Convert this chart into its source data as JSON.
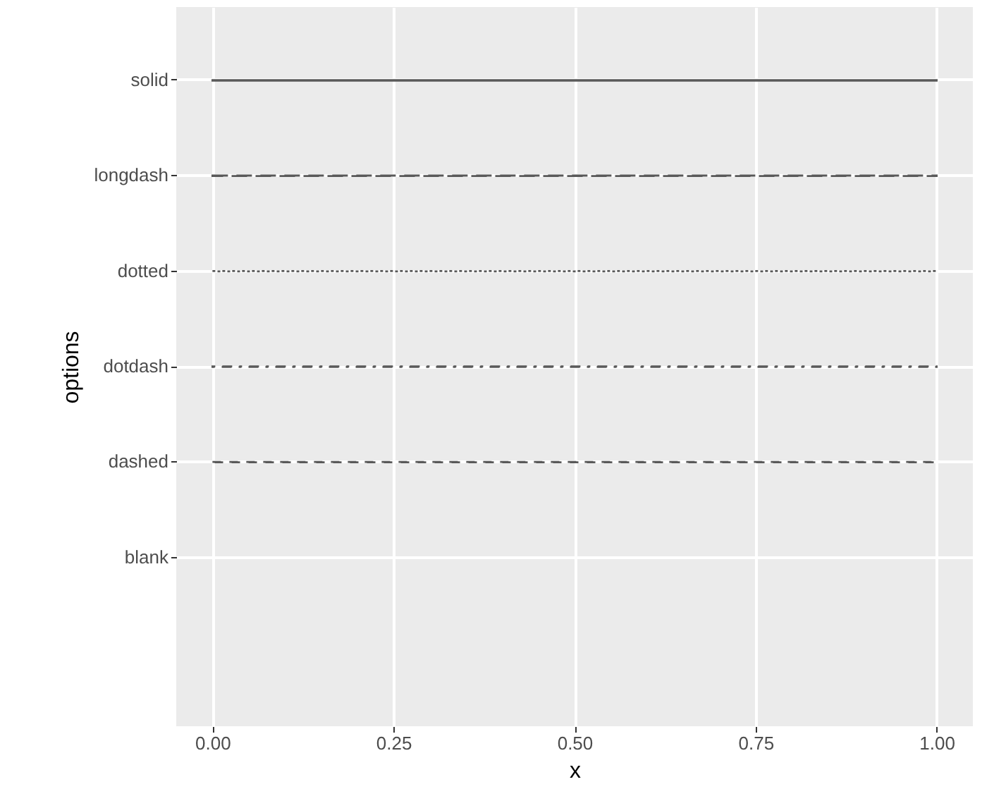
{
  "chart_data": {
    "type": "bar",
    "orientation": "horizontal",
    "xlabel": "x",
    "ylabel": "options",
    "categories": [
      "solid",
      "longdash",
      "dotted",
      "dotdash",
      "dashed",
      "blank"
    ],
    "xlim": [
      -0.05,
      1.05
    ],
    "xticks": [
      {
        "value": 0,
        "label": "0.00"
      },
      {
        "value": 0.25,
        "label": "0.25"
      },
      {
        "value": 0.5,
        "label": "0.50"
      },
      {
        "value": 0.75,
        "label": "0.75"
      },
      {
        "value": 1,
        "label": "1.00"
      }
    ],
    "grid": true,
    "series": [
      {
        "color": "#595959",
        "line_style": "solid",
        "base": [
          0,
          null,
          null,
          null,
          null,
          null
        ],
        "values": [
          1,
          null,
          null,
          null,
          null,
          null
        ]
      },
      {
        "color": "#595959",
        "line_style": "longdash",
        "base": [
          null,
          0,
          null,
          null,
          null,
          null
        ],
        "values": [
          null,
          1,
          null,
          null,
          null,
          null
        ]
      },
      {
        "color": "#595959",
        "line_style": "dotted",
        "base": [
          null,
          null,
          0,
          null,
          null,
          null
        ],
        "values": [
          null,
          null,
          1,
          null,
          null,
          null
        ]
      },
      {
        "color": "#595959",
        "line_style": "dotdash",
        "base": [
          null,
          null,
          null,
          0,
          null,
          null
        ],
        "values": [
          null,
          null,
          null,
          1,
          null,
          null
        ]
      },
      {
        "color": "#595959",
        "line_style": "dashed",
        "base": [
          null,
          null,
          null,
          null,
          0,
          null
        ],
        "values": [
          null,
          null,
          null,
          null,
          1,
          null
        ]
      }
    ]
  }
}
